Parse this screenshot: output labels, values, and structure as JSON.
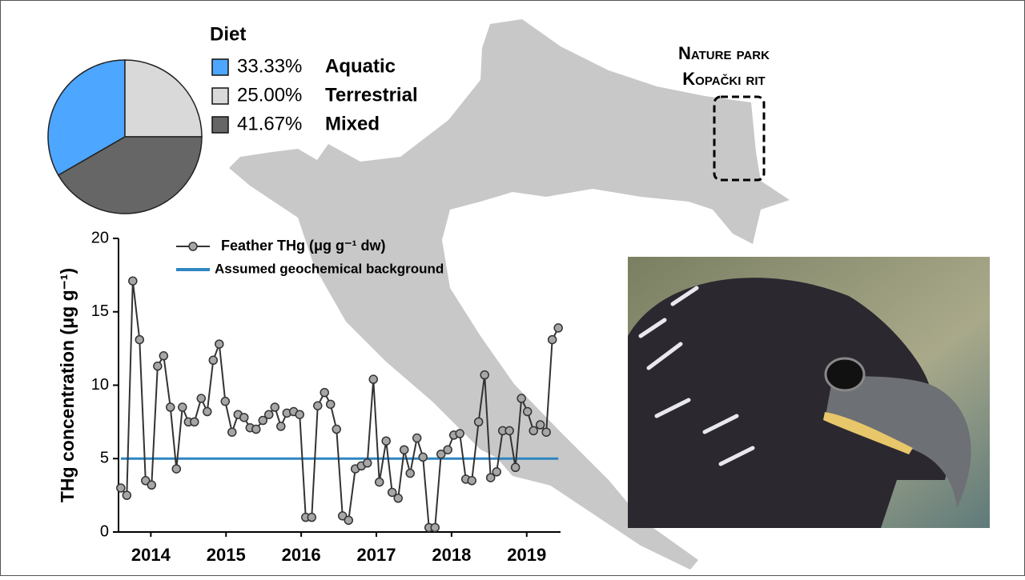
{
  "chart_data": [
    {
      "type": "pie",
      "title": "Diet",
      "categories": [
        "Aquatic",
        "Terrestrial",
        "Mixed"
      ],
      "values": [
        33.33,
        25.0,
        41.67
      ],
      "value_labels": [
        "33.33%",
        "25.00%",
        "41.67%"
      ],
      "colors": [
        "#4da6ff",
        "#d9d9d9",
        "#666666"
      ]
    },
    {
      "type": "line",
      "ylabel": "THg concentration (μg g⁻¹)",
      "xlim": [
        2013.57,
        2019.45
      ],
      "xticks": [
        2014,
        2015,
        2016,
        2017,
        2018,
        2019
      ],
      "ylim": [
        0,
        20
      ],
      "yticks": [
        0,
        5,
        10,
        15,
        20
      ],
      "series": [
        {
          "name": "Feather  THg (μg g⁻¹ dw)",
          "color": "#333333",
          "marker": "circle",
          "x": [
            2013.6,
            2013.68,
            2013.76,
            2013.85,
            2013.93,
            2014.01,
            2014.09,
            2014.17,
            2014.26,
            2014.34,
            2014.42,
            2014.5,
            2014.58,
            2014.67,
            2014.75,
            2014.83,
            2014.91,
            2014.99,
            2015.08,
            2015.16,
            2015.24,
            2015.32,
            2015.4,
            2015.49,
            2015.57,
            2015.65,
            2015.73,
            2015.81,
            2015.9,
            2015.98,
            2016.06,
            2016.14,
            2016.22,
            2016.31,
            2016.39,
            2016.47,
            2016.55,
            2016.63,
            2016.72,
            2016.8,
            2016.88,
            2016.96,
            2017.04,
            2017.13,
            2017.21,
            2017.29,
            2017.37,
            2017.45,
            2017.54,
            2017.62,
            2017.7,
            2017.78,
            2017.86,
            2017.95,
            2018.03,
            2018.11,
            2018.19,
            2018.27,
            2018.36,
            2018.44,
            2018.52,
            2018.6,
            2018.68,
            2018.77,
            2018.85,
            2018.93,
            2019.01,
            2019.09,
            2019.18,
            2019.26,
            2019.34,
            2019.42
          ],
          "values": [
            3.0,
            2.5,
            17.1,
            13.1,
            3.5,
            3.2,
            11.3,
            12.0,
            8.5,
            4.3,
            8.5,
            7.5,
            7.5,
            9.1,
            8.2,
            11.7,
            12.8,
            8.9,
            6.8,
            8.0,
            7.8,
            7.1,
            7.0,
            7.6,
            8.0,
            8.5,
            7.2,
            8.1,
            8.2,
            8.0,
            1.0,
            1.0,
            8.6,
            9.5,
            8.7,
            7.0,
            1.1,
            0.8,
            4.3,
            4.5,
            4.7,
            10.4,
            3.4,
            6.2,
            2.7,
            2.3,
            5.6,
            4.0,
            6.4,
            5.1,
            0.3,
            0.3,
            5.3,
            5.6,
            6.6,
            6.7,
            3.6,
            3.5,
            7.5,
            10.7,
            3.7,
            4.1,
            6.9,
            6.9,
            4.4,
            9.1,
            8.2,
            6.9,
            7.3,
            6.8,
            13.1,
            13.9
          ]
        },
        {
          "name": "Assumed geochemical background",
          "color": "#2e86c1",
          "x": [
            2013.6,
            2019.42
          ],
          "values": [
            5,
            5
          ]
        }
      ]
    }
  ],
  "map": {
    "label_lines": [
      "Nature park",
      "Kopački rit"
    ]
  }
}
